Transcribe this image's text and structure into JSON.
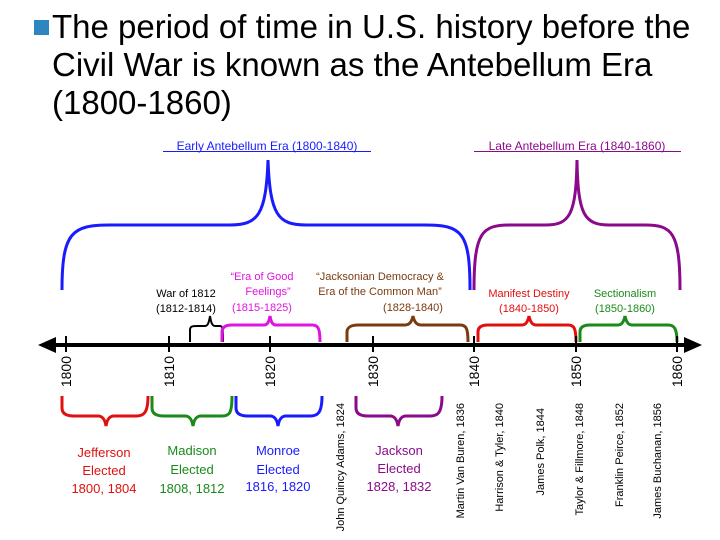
{
  "bullet": {
    "text": "The period of time in U.S. history before the Civil War is known as the Antebellum Era (1800-1860)",
    "color": "#2e86c1"
  },
  "eras": {
    "early": "Early Antebellum Era (1800-1840)",
    "late": "Late Antebellum Era (1840-1860)",
    "early_color": "#1a1aff",
    "late_color": "#8b0a8b"
  },
  "periods": {
    "war1812": {
      "title": "War of 1812",
      "years": "(1812-1814)",
      "color": "#000000"
    },
    "good_feelings": {
      "title1": "“Era of Good",
      "title2": "Feelings”",
      "years": "(1815-1825)",
      "color": "#e014e0"
    },
    "jacksonian": {
      "title1": "“Jacksonian Democracy &",
      "title2": "Era of the Common Man”",
      "years": "(1828-1840)",
      "color": "#7a3b10"
    },
    "manifest": {
      "title": "Manifest Destiny",
      "years": "(1840-1850)",
      "color": "#e01010"
    },
    "sectionalism": {
      "title": "Sectionalism",
      "years": "(1850-1860)",
      "color": "#1a8a1a"
    }
  },
  "years": [
    "1800",
    "1810",
    "1820",
    "1830",
    "1840",
    "1850",
    "1860"
  ],
  "presidents": {
    "jefferson": {
      "name": "Jefferson",
      "line2": "Elected",
      "line3": "1800, 1804",
      "color": "#e01010"
    },
    "madison": {
      "name": "Madison",
      "line2": "Elected",
      "line3": "1808, 1812",
      "color": "#1a8a1a"
    },
    "monroe": {
      "name": "Monroe",
      "line2": "Elected",
      "line3": "1816, 1820",
      "color": "#1a1aff"
    },
    "jackson": {
      "name": "Jackson",
      "line2": "Elected",
      "line3": "1828, 1832",
      "color": "#8b0a8b"
    }
  },
  "vertical_presidents": [
    "John Quincy Adams, 1824",
    "Martin Van Buren, 1836",
    "Harrison & Tyler, 1840",
    "James Polk, 1844",
    "Taylor & Fillmore, 1848",
    "Franklin Peirce, 1852",
    "James Buchanan, 1856"
  ]
}
